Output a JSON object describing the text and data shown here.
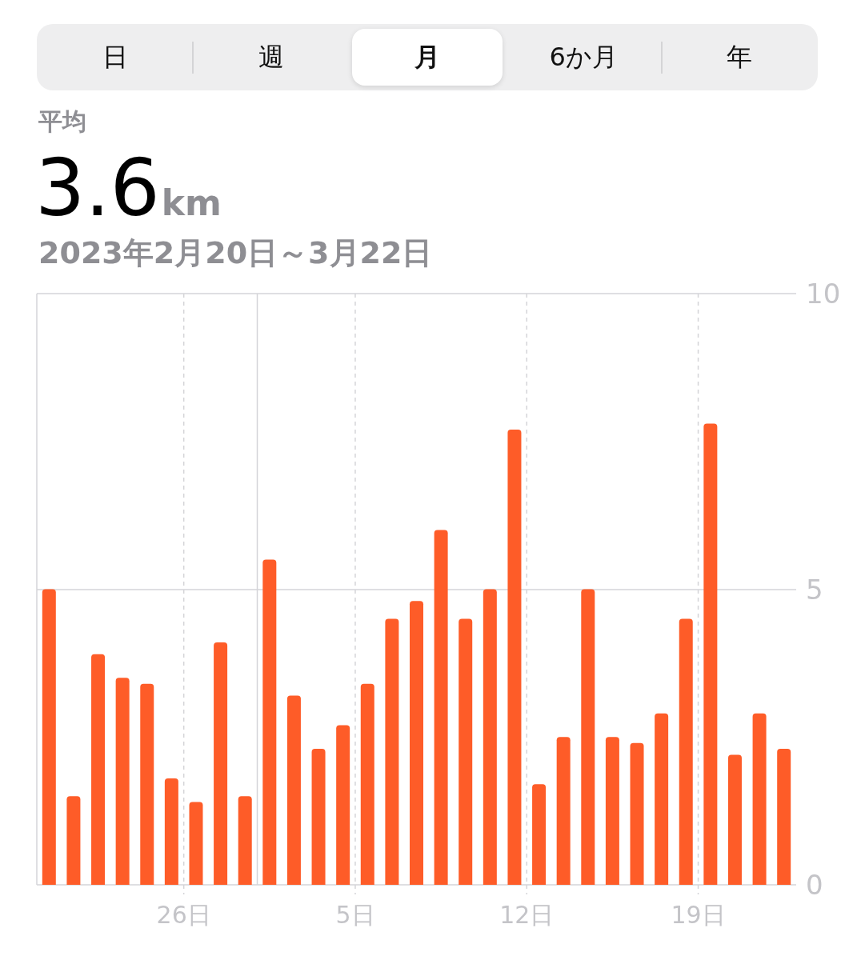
{
  "chart_data": {
    "type": "bar",
    "title": "平均",
    "subtitle": "2023年2月20日～3月22日",
    "annotations": [
      "日",
      "週",
      "月",
      "6か月",
      "年",
      "3.6km"
    ],
    "x": [
      "2023-02-20T12:00",
      "2023-02-21T12:00",
      "2023-02-22T12:00",
      "2023-02-23T12:00",
      "2023-02-24T12:00",
      "2023-02-25T12:00",
      "2023-02-26T12:00",
      "2023-02-27T12:00",
      "2023-02-28T12:00",
      "2023-03-01T12:00",
      "2023-03-02T12:00",
      "2023-03-03T12:00",
      "2023-03-04T12:00",
      "2023-03-05T12:00",
      "2023-03-06T12:00",
      "2023-03-07T12:00",
      "2023-03-08T12:00",
      "2023-03-09T12:00",
      "2023-03-10T12:00",
      "2023-03-11T12:00",
      "2023-03-12T12:00",
      "2023-03-13T12:00",
      "2023-03-14T12:00",
      "2023-03-15T12:00",
      "2023-03-16T12:00",
      "2023-03-17T12:00",
      "2023-03-18T12:00",
      "2023-03-19T12:00",
      "2023-03-20T12:00",
      "2023-03-21T12:00",
      "2023-03-22T12:00"
    ],
    "values": [
      5.0,
      1.5,
      3.9,
      3.5,
      3.4,
      1.8,
      1.4,
      4.1,
      1.5,
      5.5,
      3.2,
      2.3,
      2.7,
      3.4,
      4.5,
      4.8,
      6.0,
      4.5,
      5.0,
      7.7,
      1.7,
      2.5,
      5.0,
      2.5,
      2.4,
      2.9,
      4.5,
      7.8,
      2.2,
      2.9,
      2.3
    ],
    "color": "#fe5c28",
    "xlim": [
      "2023-02-20",
      "2023-03-23"
    ],
    "xticks": [
      {
        "value": "2023-02-26",
        "label": "26日"
      },
      {
        "value": "2023-03-01",
        "label": null
      },
      {
        "value": "2023-03-05",
        "label": "5日"
      },
      {
        "value": "2023-03-12",
        "label": "12日"
      },
      {
        "value": "2023-03-19",
        "label": "19日"
      }
    ],
    "ylim": [
      0,
      10
    ],
    "yticks": [
      0,
      5,
      10
    ],
    "grid": true
  }
}
